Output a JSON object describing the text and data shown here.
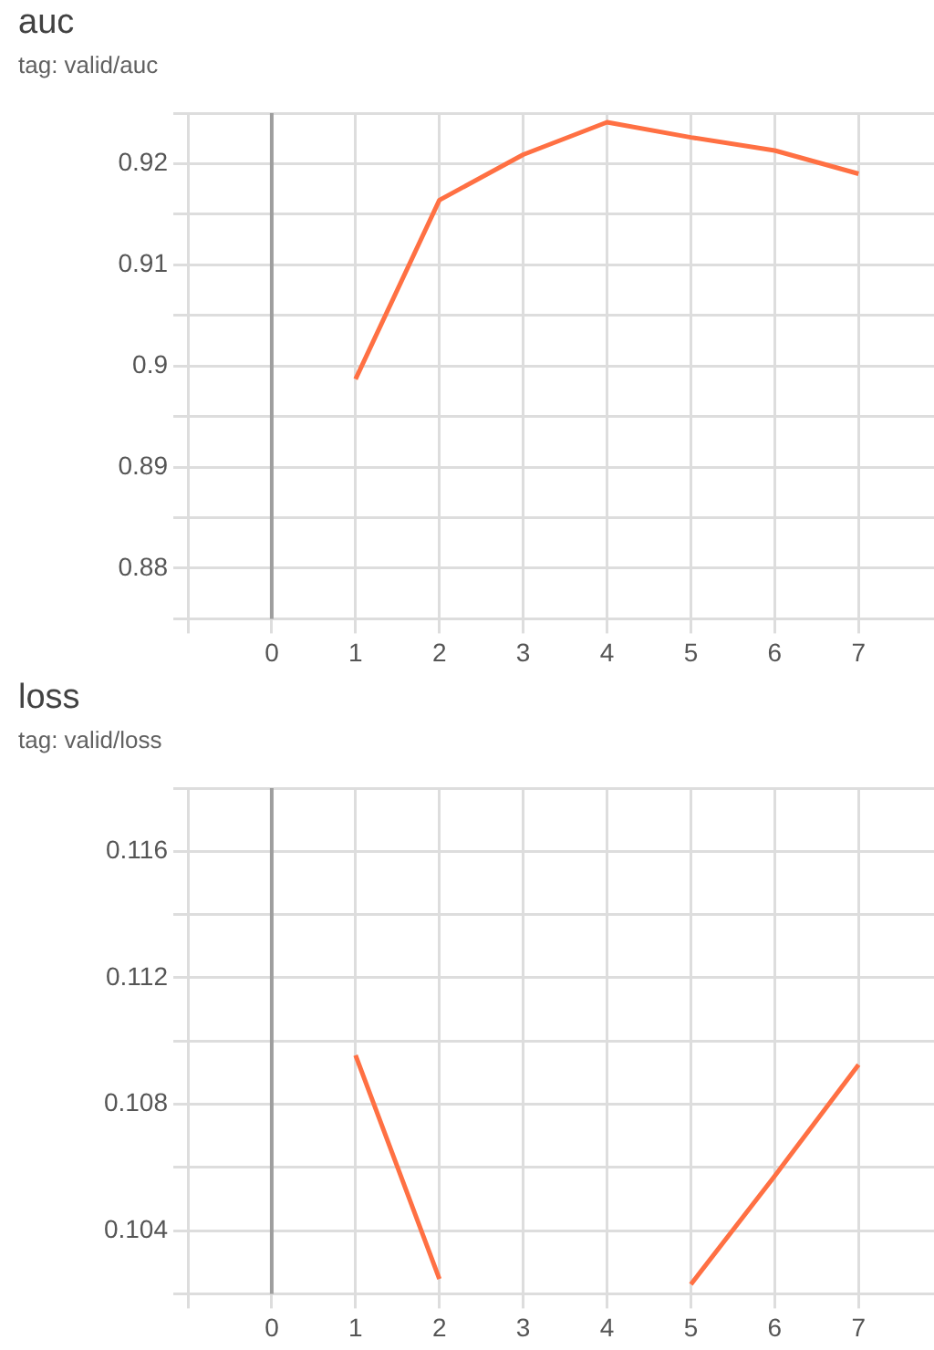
{
  "chart_data": [
    {
      "type": "line",
      "title": "auc",
      "subtitle": "tag: valid/auc",
      "x": [
        1,
        2,
        3,
        4,
        5,
        6,
        7
      ],
      "series": [
        {
          "color": "#ff7043",
          "values": [
            0.8987,
            0.9164,
            0.9209,
            0.9241,
            0.9226,
            0.9213,
            0.919
          ]
        }
      ],
      "xlim": [
        -1,
        7.9
      ],
      "xticks": [
        {
          "value": -1,
          "label": null
        },
        0,
        1,
        2,
        3,
        4,
        5,
        6,
        7
      ],
      "ylim": [
        0.875,
        0.925
      ],
      "yticks": [
        {
          "value": 0.875,
          "label": null
        },
        0.88,
        {
          "value": 0.885,
          "label": null
        },
        0.89,
        {
          "value": 0.895,
          "label": null
        },
        0.9,
        {
          "value": 0.905,
          "label": null
        },
        0.91,
        {
          "value": 0.915,
          "label": null
        },
        0.92,
        {
          "value": 0.925,
          "label": null
        }
      ],
      "ref_lines": [
        {
          "axis": "x",
          "value": 0,
          "color": "#9e9e9e"
        }
      ],
      "grid": true,
      "legend": false
    },
    {
      "type": "line",
      "title": "loss",
      "subtitle": "tag: valid/loss",
      "x": [
        1,
        2,
        3,
        4,
        5,
        6,
        7
      ],
      "series": [
        {
          "color": "#ff7043",
          "values": [
            0.10955,
            0.10247,
            null,
            null,
            0.1023,
            0.10573,
            0.10925
          ]
        }
      ],
      "xlim": [
        -1,
        7.9
      ],
      "xticks": [
        {
          "value": -1,
          "label": null
        },
        0,
        1,
        2,
        3,
        4,
        5,
        6,
        7
      ],
      "ylim": [
        0.102,
        0.118
      ],
      "yticks": [
        {
          "value": 0.102,
          "label": null
        },
        0.104,
        {
          "value": 0.106,
          "label": null
        },
        0.108,
        {
          "value": 0.11,
          "label": null
        },
        0.112,
        {
          "value": 0.114,
          "label": null
        },
        0.116,
        {
          "value": 0.118,
          "label": null
        }
      ],
      "ref_lines": [
        {
          "axis": "x",
          "value": 0,
          "color": "#9e9e9e"
        }
      ],
      "grid": true,
      "legend": false
    }
  ]
}
